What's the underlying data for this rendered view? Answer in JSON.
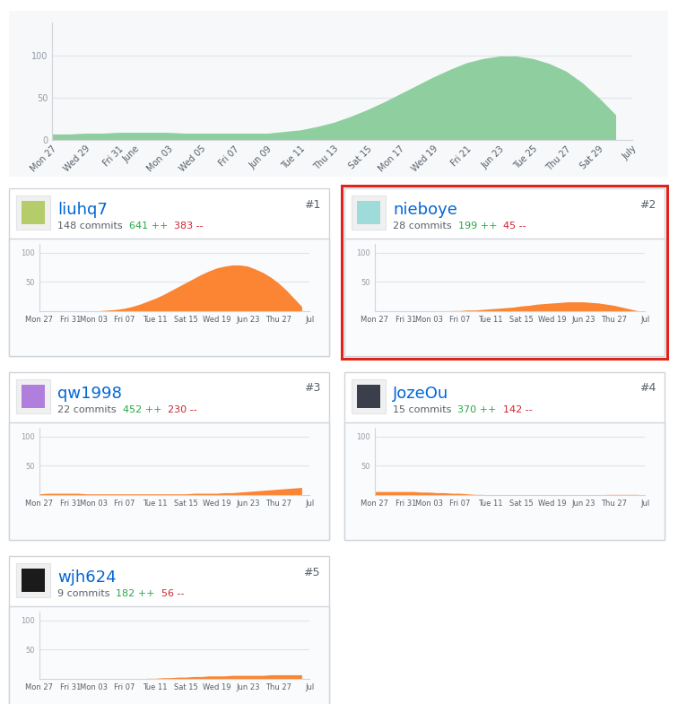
{
  "chart_data": [
    {
      "type": "area",
      "categories": [
        "Mon 27",
        null,
        "Wed 29",
        null,
        "Fri 31",
        "June",
        null,
        "Mon 03",
        null,
        "Wed 05",
        null,
        "Fri 07",
        null,
        "Jun 09",
        null,
        "Tue 11",
        null,
        "Thu 13",
        null,
        "Sat 15",
        null,
        "Mon 17",
        null,
        "Wed 19",
        null,
        "Fri 21",
        null,
        "Jun 23",
        null,
        "Tue 25",
        null,
        "Thu 27",
        null,
        "Sat 29",
        null,
        "July"
      ],
      "values": [
        7,
        7,
        8,
        8,
        9,
        9,
        9,
        9,
        8,
        8,
        8,
        8,
        8,
        8,
        10,
        12,
        16,
        21,
        28,
        36,
        45,
        55,
        65,
        75,
        84,
        92,
        97,
        100,
        100,
        97,
        91,
        82,
        68,
        50,
        30,
        null
      ],
      "color": "#8fce9e",
      "ylim": [
        0,
        140
      ],
      "yticks": [
        0,
        50,
        100
      ],
      "grid": true
    },
    {
      "type": "area",
      "title": "liuhq7",
      "subtitle": "148 commits",
      "annotations": [
        {
          "text": "#1"
        },
        {
          "text": "641 ++",
          "color": "#28a745"
        },
        {
          "text": "383 --",
          "color": "#cb2431"
        }
      ],
      "categories": [
        "Mon 27",
        null,
        null,
        null,
        "Fri 31",
        null,
        null,
        "Mon 03",
        null,
        null,
        null,
        "Fri 07",
        null,
        null,
        null,
        "Tue 11",
        null,
        null,
        null,
        "Sat 15",
        null,
        null,
        null,
        "Wed 19",
        null,
        null,
        null,
        "Jun 23",
        null,
        null,
        null,
        "Thu 27",
        null,
        null,
        null,
        "Jul"
      ],
      "values": [
        0,
        0,
        0,
        0,
        0,
        0,
        0,
        0,
        1,
        2,
        3,
        5,
        8,
        12,
        17,
        22,
        28,
        35,
        42,
        49,
        56,
        63,
        69,
        74,
        77,
        79,
        79,
        77,
        72,
        66,
        58,
        48,
        36,
        22,
        8,
        null
      ],
      "color": "#fb8532",
      "ylim": [
        0,
        115
      ],
      "yticks": [
        50,
        100
      ],
      "grid": true
    },
    {
      "type": "area",
      "title": "nieboye",
      "subtitle": "28 commits",
      "annotations": [
        {
          "text": "#2"
        },
        {
          "text": "199 ++",
          "color": "#28a745"
        },
        {
          "text": "45 --",
          "color": "#cb2431"
        }
      ],
      "categories": [
        "Mon 27",
        null,
        null,
        null,
        "Fri 31",
        null,
        null,
        "Mon 03",
        null,
        null,
        null,
        "Fri 07",
        null,
        null,
        null,
        "Tue 11",
        null,
        null,
        null,
        "Sat 15",
        null,
        null,
        null,
        "Wed 19",
        null,
        null,
        null,
        "Jun 23",
        null,
        null,
        null,
        "Thu 27",
        null,
        null,
        null,
        "Jul"
      ],
      "values": [
        0,
        0,
        0,
        0,
        0,
        0,
        0,
        0,
        0,
        0,
        1,
        1,
        2,
        2,
        3,
        4,
        5,
        6,
        7,
        9,
        10,
        12,
        13,
        14,
        15,
        16,
        16,
        16,
        15,
        14,
        12,
        10,
        7,
        4,
        1,
        null
      ],
      "color": "#fb8532",
      "ylim": [
        0,
        115
      ],
      "yticks": [
        50,
        100
      ],
      "grid": true
    },
    {
      "type": "area",
      "title": "qw1998",
      "subtitle": "22 commits",
      "annotations": [
        {
          "text": "#3"
        },
        {
          "text": "452 ++",
          "color": "#28a745"
        },
        {
          "text": "230 --",
          "color": "#cb2431"
        }
      ],
      "categories": [
        "Mon 27",
        null,
        null,
        null,
        "Fri 31",
        null,
        null,
        "Mon 03",
        null,
        null,
        null,
        "Fri 07",
        null,
        null,
        null,
        "Tue 11",
        null,
        null,
        null,
        "Sat 15",
        null,
        null,
        null,
        "Wed 19",
        null,
        null,
        null,
        "Jun 23",
        null,
        null,
        null,
        "Thu 27",
        null,
        null,
        null,
        "Jul"
      ],
      "values": [
        2,
        3,
        3,
        3,
        3,
        3,
        2,
        2,
        2,
        2,
        2,
        2,
        2,
        2,
        2,
        2,
        2,
        2,
        2,
        2,
        3,
        3,
        3,
        3,
        4,
        4,
        5,
        6,
        7,
        8,
        9,
        10,
        11,
        12,
        13,
        null
      ],
      "color": "#fb8532",
      "ylim": [
        0,
        115
      ],
      "yticks": [
        50,
        100
      ],
      "grid": true
    },
    {
      "type": "area",
      "title": "JozeOu",
      "subtitle": "15 commits",
      "annotations": [
        {
          "text": "#4"
        },
        {
          "text": "370 ++",
          "color": "#28a745"
        },
        {
          "text": "142 --",
          "color": "#cb2431"
        }
      ],
      "categories": [
        "Mon 27",
        null,
        null,
        null,
        "Fri 31",
        null,
        null,
        "Mon 03",
        null,
        null,
        null,
        "Fri 07",
        null,
        null,
        null,
        "Tue 11",
        null,
        null,
        null,
        "Sat 15",
        null,
        null,
        null,
        "Wed 19",
        null,
        null,
        null,
        "Jun 23",
        null,
        null,
        null,
        "Thu 27",
        null,
        null,
        null,
        "Jul"
      ],
      "values": [
        6,
        6,
        6,
        6,
        6,
        6,
        5,
        5,
        4,
        4,
        3,
        3,
        2,
        1,
        1,
        0,
        0,
        0,
        0,
        0,
        0,
        0,
        0,
        0,
        0,
        0,
        0,
        0,
        0,
        0,
        1,
        1,
        1,
        1,
        1,
        null
      ],
      "color": "#fb8532",
      "ylim": [
        0,
        115
      ],
      "yticks": [
        50,
        100
      ],
      "grid": true
    },
    {
      "type": "area",
      "title": "wjh624",
      "subtitle": "9 commits",
      "annotations": [
        {
          "text": "#5"
        },
        {
          "text": "182 ++",
          "color": "#28a745"
        },
        {
          "text": "56 --",
          "color": "#cb2431"
        }
      ],
      "categories": [
        "Mon 27",
        null,
        null,
        null,
        "Fri 31",
        null,
        null,
        "Mon 03",
        null,
        null,
        null,
        "Fri 07",
        null,
        null,
        null,
        "Tue 11",
        null,
        null,
        null,
        "Sat 15",
        null,
        null,
        null,
        "Wed 19",
        null,
        null,
        null,
        "Jun 23",
        null,
        null,
        null,
        "Thu 27",
        null,
        null,
        null,
        "Jul"
      ],
      "values": [
        0,
        0,
        0,
        0,
        0,
        0,
        0,
        0,
        0,
        0,
        0,
        0,
        0,
        0,
        1,
        1,
        2,
        2,
        3,
        3,
        4,
        4,
        5,
        5,
        5,
        6,
        6,
        6,
        6,
        6,
        7,
        7,
        7,
        7,
        7,
        null
      ],
      "color": "#fb8532",
      "ylim": [
        0,
        115
      ],
      "yticks": [
        50,
        100
      ],
      "grid": true
    }
  ]
}
